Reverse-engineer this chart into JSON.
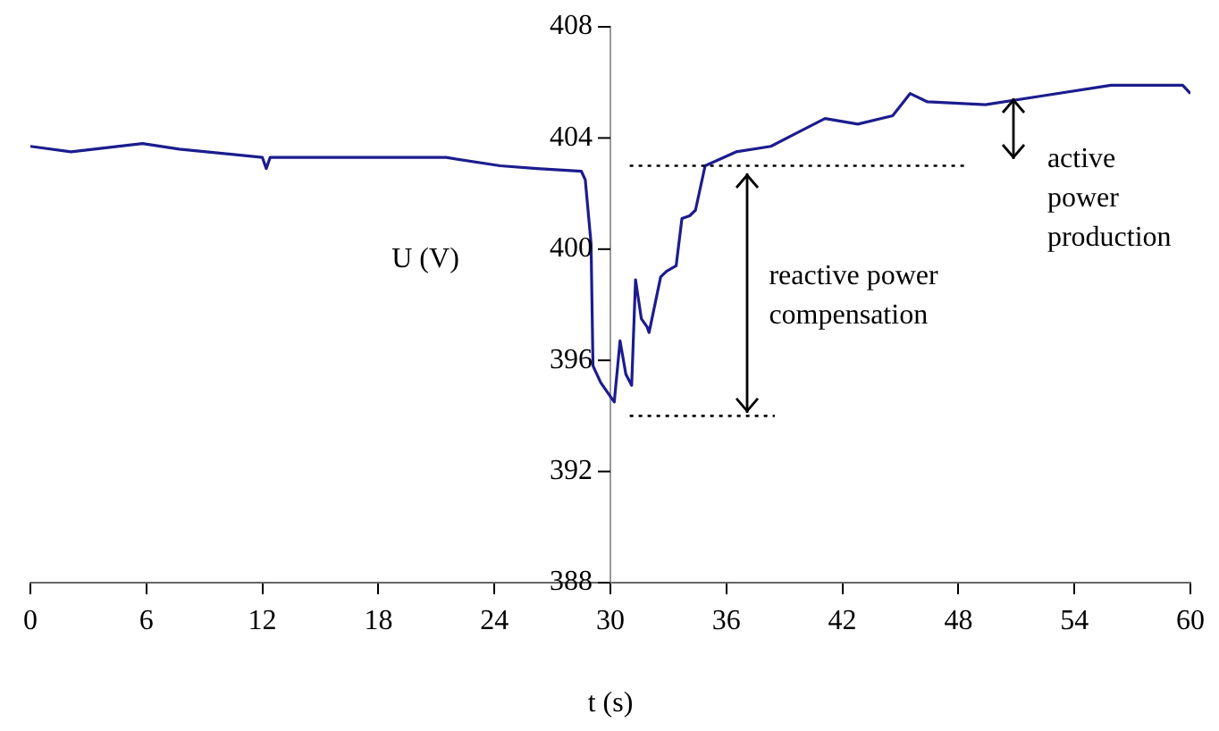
{
  "chart_data": {
    "type": "line",
    "xlabel": "t (s)",
    "ylabel": "U (V)",
    "x": [
      0,
      2.1,
      5.8,
      7.7,
      12,
      12.2,
      12.4,
      16.9,
      21.5,
      24.3,
      26.2,
      28.5,
      28.7,
      29.0,
      29.1,
      29.5,
      30.2,
      30.5,
      30.8,
      31.1,
      31.3,
      31.6,
      31.9,
      32.0,
      32.6,
      32.9,
      33.4,
      33.7,
      34.1,
      34.4,
      34.9,
      36.5,
      38.3,
      39.7,
      41.1,
      42.8,
      44.6,
      45.5,
      46.4,
      49.4,
      52.2,
      55.9,
      59.6,
      60
    ],
    "series": [
      {
        "color": "#1c1c8e",
        "values": [
          403.7,
          403.5,
          403.8,
          403.6,
          403.3,
          402.9,
          403.3,
          403.3,
          403.3,
          403.0,
          402.9,
          402.8,
          402.5,
          400.2,
          395.8,
          395.2,
          394.5,
          396.7,
          395.5,
          395.1,
          398.9,
          397.5,
          397.2,
          397.0,
          399.0,
          399.2,
          399.4,
          401.1,
          401.2,
          401.4,
          403.0,
          403.5,
          403.7,
          404.2,
          404.7,
          404.5,
          404.8,
          405.6,
          405.3,
          405.2,
          405.5,
          405.9,
          405.9,
          405.6
        ]
      }
    ],
    "xlim": [
      0,
      60
    ],
    "xticks": [
      0,
      6,
      12,
      18,
      24,
      30,
      36,
      42,
      48,
      54,
      60
    ],
    "ylim": [
      388,
      408
    ],
    "yticks": [
      388,
      392,
      396,
      400,
      404,
      408
    ],
    "grid": false,
    "legend": false,
    "marker": "none",
    "line_style": "solid",
    "ref_lines": [
      {
        "axis": "y",
        "value": 403,
        "line_style": "dotted"
      },
      {
        "axis": "y",
        "value": 394,
        "line_style": "dotted"
      }
    ],
    "annotations": [
      "reactive power compensation",
      "active power production"
    ]
  }
}
